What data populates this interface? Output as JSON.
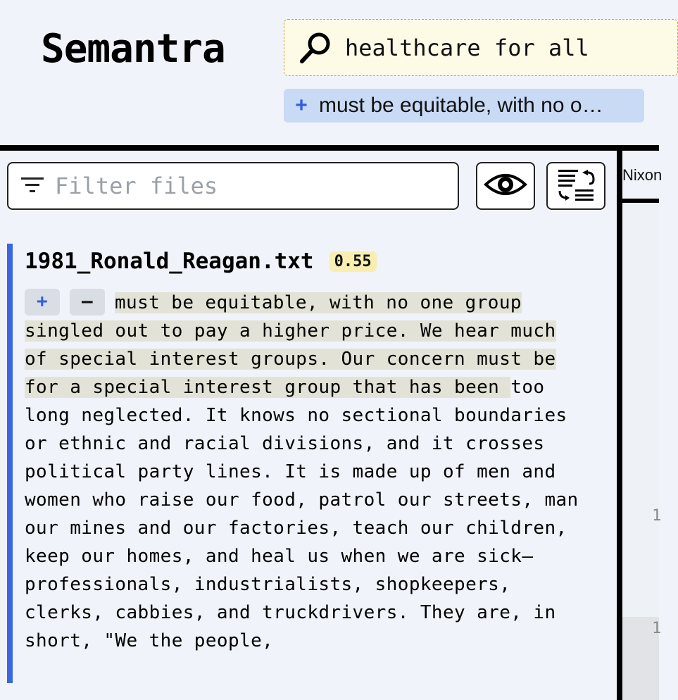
{
  "app": {
    "title": "Semantra"
  },
  "search": {
    "value": "healthcare for all",
    "icon": "search-icon"
  },
  "query_chip": {
    "prefix": "+",
    "text": "must be equitable, with no o…"
  },
  "filter": {
    "placeholder": "Filter files",
    "icon": "filter-icon"
  },
  "toolbar": {
    "eye_button_icon": "eye-icon",
    "sort_button_icon": "sort-icon"
  },
  "result": {
    "filename": "1981_Ronald_Reagan.txt",
    "score": "0.55",
    "plus_label": "+",
    "minus_label": "–",
    "highlighted_text": "must be equitable, with no one group singled out to pay a higher price. We hear much of special interest groups. Our concern must be for a special interest group that has been ",
    "rest_text": "too long neglected. It knows no sectional boundaries or ethnic and racial divisions, and it crosses political party lines. It is made up of men and women who raise our food, patrol our streets, man our mines and our factories, teach our children, keep our homes, and heal us when we are sick—professionals, industrialists, shopkeepers, clerks, cabbies, and truckdrivers. They are, in short, \"We the people,"
  },
  "right_panel": {
    "tab_label": "Nixon",
    "numbers": [
      "1",
      "1"
    ]
  },
  "colors": {
    "accent": "#3a66e0",
    "chip_bg": "#c9daf5",
    "search_bg": "#fdfbe6",
    "score_bg": "#f7eeb0"
  }
}
